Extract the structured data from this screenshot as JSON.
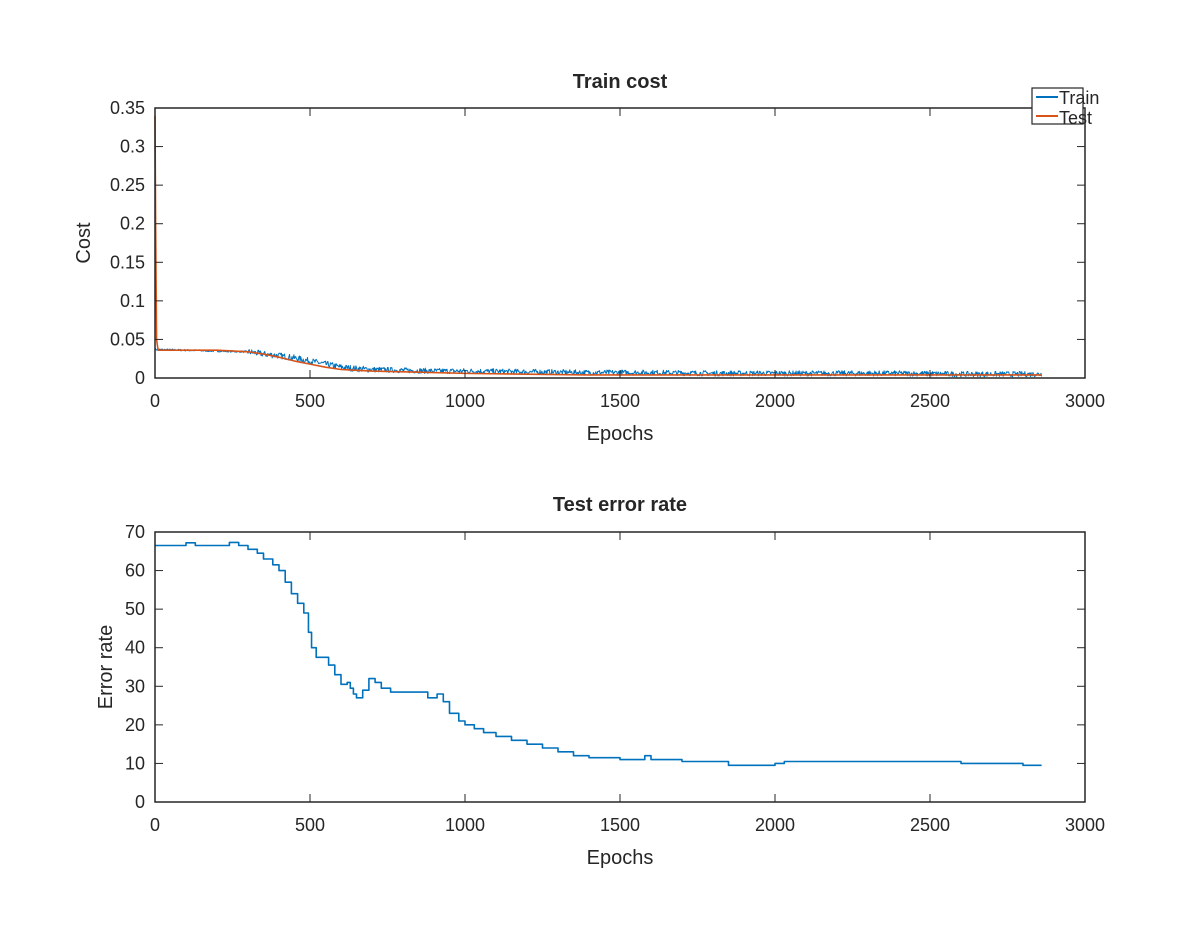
{
  "chart_data": [
    {
      "type": "line",
      "title": "Train cost",
      "xlabel": "Epochs",
      "ylabel": "Cost",
      "xlim": [
        0,
        3000
      ],
      "ylim": [
        0,
        0.35
      ],
      "xticks": [
        0,
        500,
        1000,
        1500,
        2000,
        2500,
        3000
      ],
      "yticks": [
        0,
        0.05,
        0.1,
        0.15,
        0.2,
        0.25,
        0.3,
        0.35
      ],
      "xtick_labels": [
        "0",
        "500",
        "1000",
        "1500",
        "2000",
        "2500",
        "3000"
      ],
      "ytick_labels": [
        "0",
        "0.05",
        "0.1",
        "0.15",
        "0.2",
        "0.25",
        "0.3",
        "0.35"
      ],
      "grid": false,
      "legend": "top-right",
      "series": [
        {
          "name": "Train",
          "color": "#0072BD",
          "noisy": true,
          "x": [
            0,
            100,
            200,
            300,
            350,
            400,
            450,
            500,
            550,
            600,
            650,
            700,
            800,
            900,
            1000,
            1200,
            1400,
            1600,
            1800,
            2000,
            2200,
            2400,
            2600,
            2860
          ],
          "y": [
            0.037,
            0.036,
            0.035,
            0.034,
            0.031,
            0.029,
            0.026,
            0.022,
            0.018,
            0.014,
            0.012,
            0.011,
            0.01,
            0.009,
            0.009,
            0.008,
            0.007,
            0.007,
            0.006,
            0.006,
            0.006,
            0.006,
            0.005,
            0.005
          ]
        },
        {
          "name": "Test",
          "color": "#D95319",
          "noisy": false,
          "x": [
            0,
            2,
            5,
            10,
            100,
            200,
            300,
            350,
            400,
            450,
            500,
            550,
            600,
            650,
            700,
            800,
            900,
            1000,
            1200,
            1400,
            1600,
            1800,
            2000,
            2200,
            2400,
            2600,
            2860
          ],
          "y": [
            0.34,
            0.2,
            0.05,
            0.036,
            0.036,
            0.036,
            0.034,
            0.031,
            0.027,
            0.022,
            0.018,
            0.014,
            0.011,
            0.01,
            0.009,
            0.008,
            0.007,
            0.006,
            0.005,
            0.004,
            0.004,
            0.004,
            0.004,
            0.004,
            0.004,
            0.004,
            0.004
          ]
        }
      ]
    },
    {
      "type": "line",
      "title": "Test error rate",
      "xlabel": "Epochs",
      "ylabel": "Error rate",
      "xlim": [
        0,
        3000
      ],
      "ylim": [
        0,
        70
      ],
      "xticks": [
        0,
        500,
        1000,
        1500,
        2000,
        2500,
        3000
      ],
      "yticks": [
        0,
        10,
        20,
        30,
        40,
        50,
        60,
        70
      ],
      "xtick_labels": [
        "0",
        "500",
        "1000",
        "1500",
        "2000",
        "2500",
        "3000"
      ],
      "ytick_labels": [
        "0",
        "10",
        "20",
        "30",
        "40",
        "50",
        "60",
        "70"
      ],
      "grid": false,
      "series": [
        {
          "color": "#0072BD",
          "step": true,
          "x": [
            0,
            100,
            130,
            240,
            270,
            300,
            330,
            350,
            380,
            400,
            420,
            440,
            460,
            480,
            495,
            505,
            520,
            540,
            560,
            580,
            600,
            620,
            630,
            640,
            650,
            670,
            690,
            710,
            730,
            760,
            800,
            860,
            880,
            900,
            910,
            930,
            950,
            980,
            1000,
            1030,
            1060,
            1100,
            1150,
            1200,
            1250,
            1300,
            1350,
            1400,
            1500,
            1580,
            1600,
            1650,
            1700,
            1800,
            1850,
            1900,
            2000,
            2030,
            2100,
            2400,
            2600,
            2800,
            2860
          ],
          "y": [
            66.5,
            67.2,
            66.5,
            67.3,
            66.5,
            65.5,
            64.5,
            63,
            61.5,
            60,
            57,
            54,
            51.5,
            49,
            44,
            40,
            37.5,
            37.5,
            35.5,
            33,
            30.5,
            31,
            29.5,
            28,
            27,
            29,
            32,
            31,
            29.5,
            28.5,
            28.5,
            28.5,
            27,
            27,
            28,
            26,
            23,
            21,
            20,
            19,
            18,
            17,
            16,
            15,
            14,
            13,
            12,
            11.5,
            11,
            12,
            11,
            11,
            10.5,
            10.5,
            9.5,
            9.5,
            10,
            10.5,
            10.5,
            10.5,
            10,
            9.5,
            9.5
          ]
        }
      ]
    }
  ]
}
